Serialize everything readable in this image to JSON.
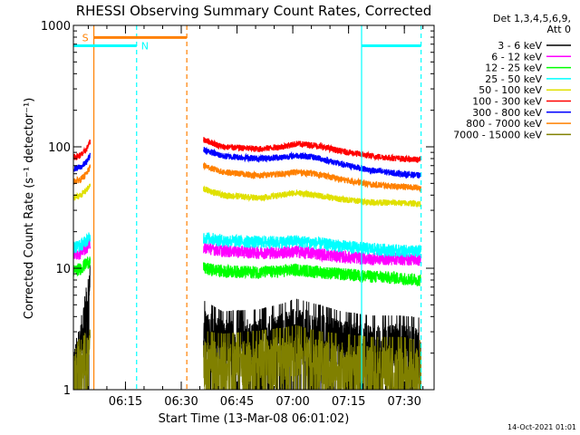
{
  "chart_data": {
    "type": "line",
    "title": "RHESSI Observing Summary Count Rates, Corrected",
    "xlabel": "Start Time (13-Mar-08 06:01:02)",
    "ylabel": "Corrected Count Rate (s⁻¹ detector⁻¹)",
    "yscale": "log",
    "ylim": [
      1,
      1000
    ],
    "xlim_minutes": [
      0,
      97
    ],
    "x_ticks": [
      {
        "label": "06:15",
        "t": 14
      },
      {
        "label": "06:30",
        "t": 29
      },
      {
        "label": "06:45",
        "t": 44
      },
      {
        "label": "07:00",
        "t": 59
      },
      {
        "label": "07:15",
        "t": 74
      },
      {
        "label": "07:30",
        "t": 89
      }
    ],
    "y_ticks": [
      {
        "label": "1",
        "v": 1
      },
      {
        "label": "10",
        "v": 10
      },
      {
        "label": "100",
        "v": 100
      },
      {
        "label": "1000",
        "v": 1000
      }
    ],
    "legend_header": [
      "Det 1,3,4,5,6,9,",
      "Att 0"
    ],
    "legend_placement": "right",
    "series": [
      {
        "name": "3 - 6 keV",
        "color": "#000000",
        "pre": [
          [
            0,
            1.4
          ],
          [
            2,
            2.5
          ],
          [
            3.5,
            5
          ],
          [
            4.5,
            9
          ]
        ],
        "post": [
          [
            35,
            3.2
          ],
          [
            40,
            2.6
          ],
          [
            50,
            2.7
          ],
          [
            56,
            3.0
          ],
          [
            60,
            3.3
          ],
          [
            65,
            3.0
          ],
          [
            72,
            2.6
          ],
          [
            80,
            2.4
          ],
          [
            88,
            2.4
          ],
          [
            93.5,
            2.3
          ]
        ]
      },
      {
        "name": "6 - 12 keV",
        "color": "#ff00ff",
        "pre": [
          [
            0,
            13
          ],
          [
            2,
            13.5
          ],
          [
            3.5,
            15
          ],
          [
            4.5,
            16
          ]
        ],
        "post": [
          [
            35,
            15
          ],
          [
            40,
            14
          ],
          [
            50,
            13.5
          ],
          [
            56,
            13.5
          ],
          [
            60,
            13.8
          ],
          [
            65,
            13.3
          ],
          [
            72,
            12.5
          ],
          [
            80,
            12
          ],
          [
            88,
            12
          ],
          [
            93.5,
            11.8
          ]
        ]
      },
      {
        "name": "12 - 25 keV",
        "color": "#00ff00",
        "pre": [
          [
            0,
            9.5
          ],
          [
            2,
            10
          ],
          [
            3.5,
            11
          ],
          [
            4.5,
            11.5
          ]
        ],
        "post": [
          [
            35,
            10
          ],
          [
            40,
            9.5
          ],
          [
            50,
            9.3
          ],
          [
            56,
            9.5
          ],
          [
            60,
            9.8
          ],
          [
            65,
            9.4
          ],
          [
            72,
            9
          ],
          [
            80,
            8.6
          ],
          [
            88,
            8.3
          ],
          [
            93.5,
            8
          ]
        ]
      },
      {
        "name": "25 - 50 keV",
        "color": "#00ffff",
        "pre": [
          [
            0,
            15
          ],
          [
            2,
            15.5
          ],
          [
            3.5,
            17
          ],
          [
            4.5,
            18
          ]
        ],
        "post": [
          [
            35,
            18
          ],
          [
            40,
            17
          ],
          [
            50,
            16.5
          ],
          [
            56,
            16.5
          ],
          [
            60,
            16.8
          ],
          [
            65,
            16.2
          ],
          [
            72,
            15.3
          ],
          [
            80,
            14.5
          ],
          [
            88,
            14
          ],
          [
            93.5,
            13.8
          ]
        ]
      },
      {
        "name": "50 - 100 keV",
        "color": "#e0e000",
        "pre": [
          [
            0,
            38
          ],
          [
            2,
            40
          ],
          [
            3.5,
            44
          ],
          [
            4.5,
            48
          ]
        ],
        "post": [
          [
            35,
            45
          ],
          [
            40,
            40
          ],
          [
            50,
            38
          ],
          [
            56,
            40
          ],
          [
            60,
            42
          ],
          [
            65,
            40
          ],
          [
            72,
            37
          ],
          [
            80,
            35
          ],
          [
            88,
            34.5
          ],
          [
            93.5,
            34
          ]
        ]
      },
      {
        "name": "100 - 300 keV",
        "color": "#ff0000",
        "pre": [
          [
            0,
            82
          ],
          [
            2,
            85
          ],
          [
            3.5,
            95
          ],
          [
            4.5,
            110
          ]
        ],
        "post": [
          [
            35,
            115
          ],
          [
            40,
            100
          ],
          [
            50,
            96
          ],
          [
            56,
            100
          ],
          [
            60,
            106
          ],
          [
            65,
            103
          ],
          [
            72,
            92
          ],
          [
            80,
            84
          ],
          [
            88,
            80
          ],
          [
            93.5,
            78
          ]
        ]
      },
      {
        "name": "300 - 800 keV",
        "color": "#0000ff",
        "pre": [
          [
            0,
            66
          ],
          [
            2,
            68
          ],
          [
            3.5,
            75
          ],
          [
            4.5,
            85
          ]
        ],
        "post": [
          [
            35,
            95
          ],
          [
            40,
            84
          ],
          [
            50,
            80
          ],
          [
            56,
            82
          ],
          [
            60,
            85
          ],
          [
            65,
            82
          ],
          [
            72,
            72
          ],
          [
            80,
            64
          ],
          [
            88,
            60
          ],
          [
            93.5,
            58
          ]
        ]
      },
      {
        "name": "800 - 7000 keV",
        "color": "#ff8000",
        "pre": [
          [
            0,
            52
          ],
          [
            2,
            54
          ],
          [
            3.5,
            60
          ],
          [
            4.5,
            68
          ]
        ],
        "post": [
          [
            35,
            70
          ],
          [
            40,
            62
          ],
          [
            50,
            58
          ],
          [
            56,
            60
          ],
          [
            60,
            62
          ],
          [
            65,
            60
          ],
          [
            72,
            54
          ],
          [
            80,
            49
          ],
          [
            88,
            47
          ],
          [
            93.5,
            46
          ]
        ]
      },
      {
        "name": "7000 - 15000 keV",
        "color": "#808000",
        "pre": [
          [
            0,
            1.5
          ],
          [
            2,
            1.9
          ],
          [
            3.5,
            2.2
          ],
          [
            4.5,
            2.4
          ]
        ],
        "post": [
          [
            35,
            1.8
          ],
          [
            40,
            1.7
          ],
          [
            50,
            1.8
          ],
          [
            56,
            1.9
          ],
          [
            60,
            2.0
          ],
          [
            65,
            1.8
          ],
          [
            72,
            1.7
          ],
          [
            80,
            1.6
          ],
          [
            88,
            1.6
          ],
          [
            93.5,
            1.5
          ]
        ]
      }
    ],
    "events": [
      {
        "label": "S",
        "color": "#ff8000",
        "y": 795,
        "start": 5.5,
        "end": 30.5
      },
      {
        "label": "N",
        "color": "#00ffff",
        "y": 680,
        "start": 0,
        "end": 17
      }
    ],
    "night_bar_right": {
      "color": "#00ffff",
      "y": 680,
      "start": 77.5,
      "end": 93.5
    },
    "vlines": [
      {
        "t": 5.5,
        "color": "#ff8000",
        "style": "solid"
      },
      {
        "t": 30.5,
        "color": "#ff8000",
        "style": "dashed"
      },
      {
        "t": 17,
        "color": "#00ffff",
        "style": "dashed"
      },
      {
        "t": 77.5,
        "color": "#00ffff",
        "style": "solid"
      },
      {
        "t": 93.5,
        "color": "#00ffff",
        "style": "dashed"
      }
    ],
    "grid": false,
    "footer": "14-Oct-2021 01:01"
  }
}
